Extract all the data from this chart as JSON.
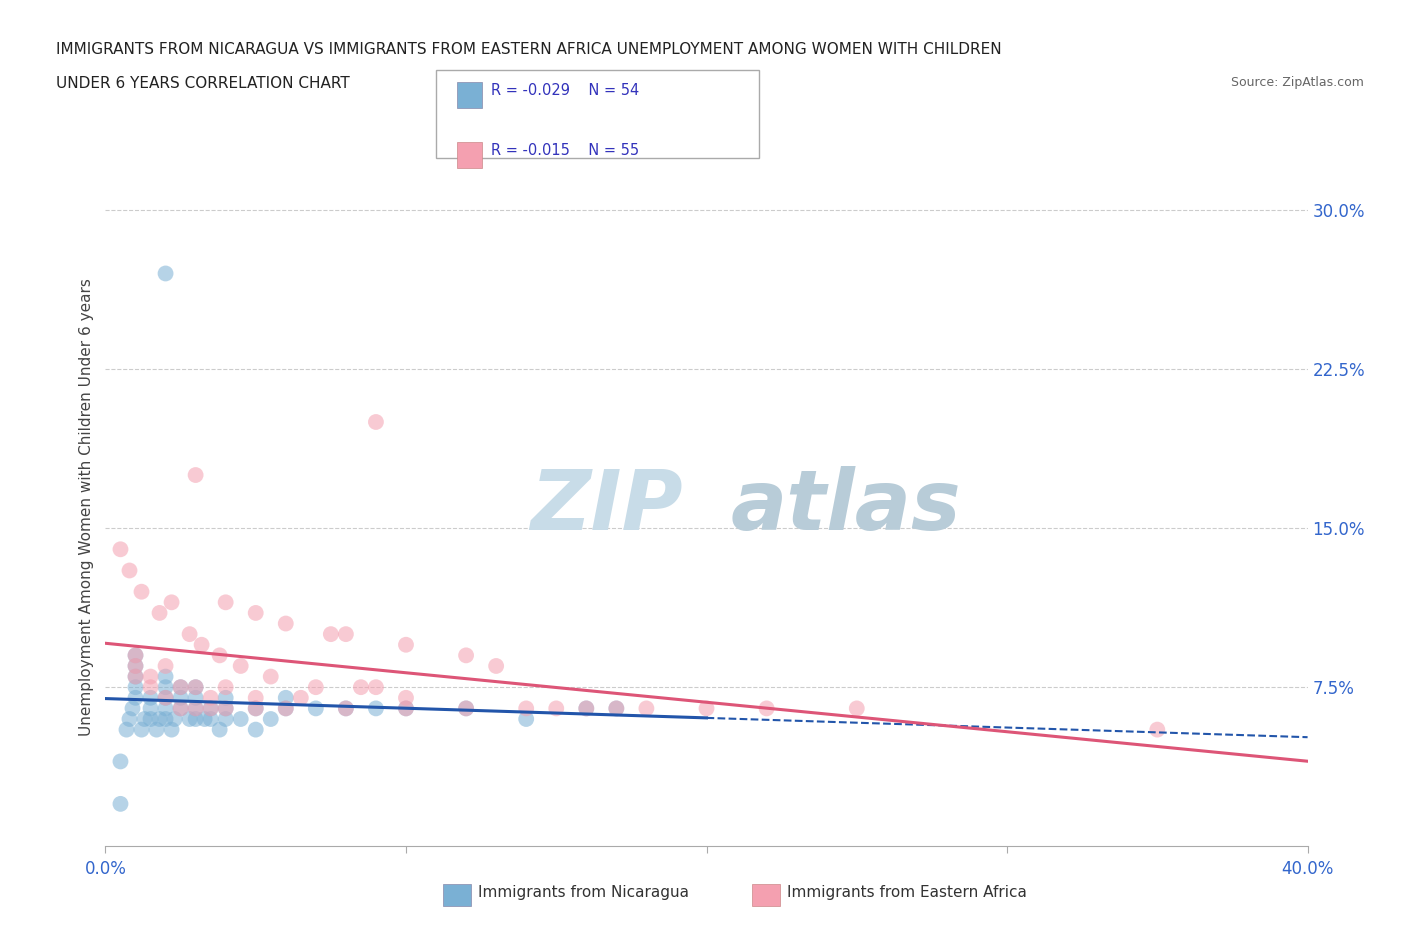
{
  "title_line1": "IMMIGRANTS FROM NICARAGUA VS IMMIGRANTS FROM EASTERN AFRICA UNEMPLOYMENT AMONG WOMEN WITH CHILDREN",
  "title_line2": "UNDER 6 YEARS CORRELATION CHART",
  "source": "Source: ZipAtlas.com",
  "ylabel": "Unemployment Among Women with Children Under 6 years",
  "xlim": [
    0.0,
    0.4
  ],
  "ylim": [
    0.0,
    0.32
  ],
  "xticks": [
    0.0,
    0.1,
    0.2,
    0.3,
    0.4
  ],
  "xtick_labels": [
    "0.0%",
    "",
    "",
    "",
    "40.0%"
  ],
  "ytick_labels_right": [
    "7.5%",
    "15.0%",
    "22.5%",
    "30.0%"
  ],
  "ytick_values_right": [
    0.075,
    0.15,
    0.225,
    0.3
  ],
  "legend_r1": "R = -0.029",
  "legend_n1": "N = 54",
  "legend_r2": "R = -0.015",
  "legend_n2": "N = 55",
  "color_nicaragua": "#7ab0d4",
  "color_eastern_africa": "#f4a0b0",
  "color_line_nicaragua": "#2255aa",
  "color_line_eastern_africa": "#dd5577",
  "background_color": "#ffffff",
  "grid_color": "#cccccc",
  "nicaragua_x": [
    0.005,
    0.005,
    0.007,
    0.008,
    0.009,
    0.01,
    0.01,
    0.01,
    0.01,
    0.01,
    0.012,
    0.013,
    0.015,
    0.015,
    0.015,
    0.017,
    0.018,
    0.02,
    0.02,
    0.02,
    0.02,
    0.02,
    0.022,
    0.023,
    0.025,
    0.025,
    0.025,
    0.028,
    0.03,
    0.03,
    0.03,
    0.03,
    0.033,
    0.035,
    0.035,
    0.038,
    0.04,
    0.04,
    0.04,
    0.045,
    0.05,
    0.05,
    0.055,
    0.06,
    0.06,
    0.07,
    0.08,
    0.09,
    0.1,
    0.12,
    0.14,
    0.16,
    0.02,
    0.17
  ],
  "nicaragua_y": [
    0.04,
    0.02,
    0.055,
    0.06,
    0.065,
    0.07,
    0.075,
    0.08,
    0.085,
    0.09,
    0.055,
    0.06,
    0.06,
    0.065,
    0.07,
    0.055,
    0.06,
    0.06,
    0.065,
    0.07,
    0.075,
    0.08,
    0.055,
    0.06,
    0.065,
    0.07,
    0.075,
    0.06,
    0.06,
    0.065,
    0.07,
    0.075,
    0.06,
    0.06,
    0.065,
    0.055,
    0.06,
    0.065,
    0.07,
    0.06,
    0.055,
    0.065,
    0.06,
    0.065,
    0.07,
    0.065,
    0.065,
    0.065,
    0.065,
    0.065,
    0.06,
    0.065,
    0.27,
    0.065
  ],
  "eastern_africa_x": [
    0.005,
    0.008,
    0.01,
    0.01,
    0.01,
    0.012,
    0.015,
    0.015,
    0.018,
    0.02,
    0.02,
    0.022,
    0.025,
    0.025,
    0.028,
    0.03,
    0.03,
    0.032,
    0.035,
    0.035,
    0.038,
    0.04,
    0.04,
    0.045,
    0.05,
    0.05,
    0.055,
    0.06,
    0.065,
    0.07,
    0.075,
    0.08,
    0.085,
    0.09,
    0.1,
    0.1,
    0.12,
    0.14,
    0.16,
    0.18,
    0.2,
    0.25,
    0.03,
    0.04,
    0.05,
    0.06,
    0.08,
    0.1,
    0.12,
    0.13,
    0.15,
    0.22,
    0.35,
    0.17,
    0.09
  ],
  "eastern_africa_y": [
    0.14,
    0.13,
    0.08,
    0.085,
    0.09,
    0.12,
    0.075,
    0.08,
    0.11,
    0.07,
    0.085,
    0.115,
    0.065,
    0.075,
    0.1,
    0.065,
    0.075,
    0.095,
    0.065,
    0.07,
    0.09,
    0.065,
    0.075,
    0.085,
    0.065,
    0.07,
    0.08,
    0.065,
    0.07,
    0.075,
    0.1,
    0.065,
    0.075,
    0.075,
    0.065,
    0.07,
    0.065,
    0.065,
    0.065,
    0.065,
    0.065,
    0.065,
    0.175,
    0.115,
    0.11,
    0.105,
    0.1,
    0.095,
    0.09,
    0.085,
    0.065,
    0.065,
    0.055,
    0.065,
    0.2
  ],
  "watermark_top": "ZIP",
  "watermark_bottom": "atlas",
  "watermark_color_top": "#c8dce8",
  "watermark_color_bottom": "#b8ccd8"
}
